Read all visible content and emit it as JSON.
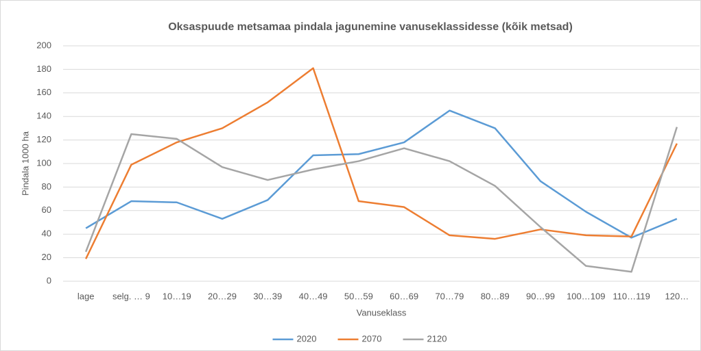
{
  "chart_data": {
    "type": "line",
    "title": "Oksaspuude metsamaa pindala jagunemine vanuseklassidesse (kõik metsad)",
    "x_label": "Vanuseklass",
    "y_label": "Pindala 1000 ha",
    "categories": [
      "lage",
      "selg. … 9",
      "10…19",
      "20…29",
      "30…39",
      "40…49",
      "50…59",
      "60…69",
      "70…79",
      "80…89",
      "90…99",
      "100…109",
      "110…119",
      "120…"
    ],
    "series": [
      {
        "name": "2020",
        "color": "#5b9bd5",
        "values": [
          45,
          68,
          67,
          53,
          69,
          107,
          108,
          118,
          145,
          130,
          85,
          59,
          37,
          53
        ]
      },
      {
        "name": "2070",
        "color": "#ed7d31",
        "values": [
          19,
          99,
          118,
          130,
          152,
          181,
          68,
          63,
          39,
          36,
          44,
          39,
          38,
          117
        ]
      },
      {
        "name": "2120",
        "color": "#a5a5a5",
        "values": [
          25,
          125,
          121,
          97,
          86,
          95,
          102,
          113,
          102,
          81,
          46,
          13,
          8,
          131
        ]
      }
    ],
    "ylim": [
      0,
      200
    ],
    "yticks": [
      0,
      20,
      40,
      60,
      80,
      100,
      120,
      140,
      160,
      180,
      200
    ],
    "grid": true,
    "legend": "bottom"
  }
}
